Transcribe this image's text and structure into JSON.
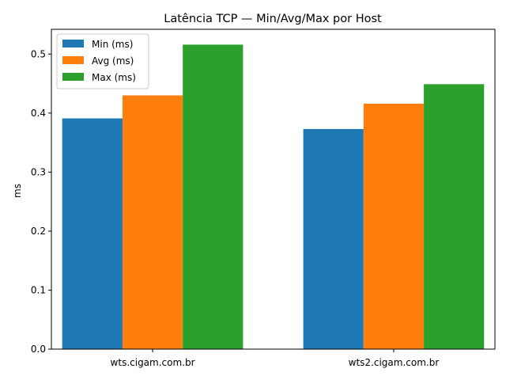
{
  "chart_data": {
    "type": "bar",
    "title": "Latência TCP — Min/Avg/Max por Host",
    "xlabel": "",
    "ylabel": "ms",
    "categories": [
      "wts.cigam.com.br",
      "wts2.cigam.com.br"
    ],
    "series": [
      {
        "name": "Min (ms)",
        "values": [
          0.391,
          0.373
        ],
        "color": "#1f77b4"
      },
      {
        "name": "Avg (ms)",
        "values": [
          0.43,
          0.416
        ],
        "color": "#ff7f0e"
      },
      {
        "name": "Max (ms)",
        "values": [
          0.516,
          0.449
        ],
        "color": "#2ca02c"
      }
    ],
    "ylim": [
      0,
      0.542
    ],
    "yticks": [
      "0.0",
      "0.1",
      "0.2",
      "0.3",
      "0.4",
      "0.5"
    ],
    "grid": false,
    "legend_position": "top-left"
  }
}
